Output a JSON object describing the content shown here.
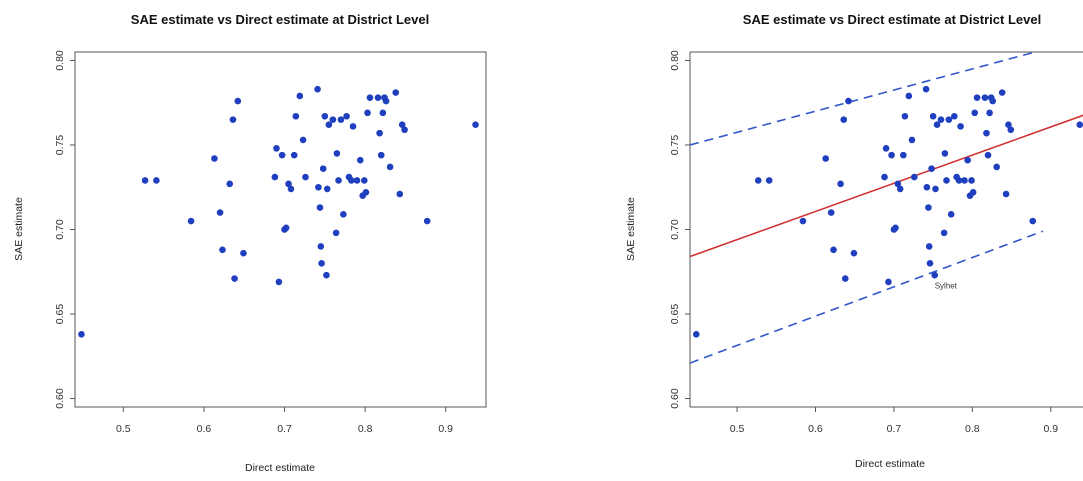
{
  "chart_data": [
    {
      "type": "scatter",
      "title": "SAE estimate vs Direct estimate at District Level",
      "xlabel": "Direct estimate",
      "ylabel": "SAE estimate",
      "xlim": [
        0.44,
        0.95
      ],
      "ylim": [
        0.595,
        0.805
      ],
      "xticks": [
        "0.5",
        "0.6",
        "0.7",
        "0.8",
        "0.9"
      ],
      "yticks": [
        "0.60",
        "0.65",
        "0.70",
        "0.75",
        "0.80"
      ],
      "grid": false,
      "point_color": "#1f3fbf",
      "points": [
        [
          0.448,
          0.638
        ],
        [
          0.527,
          0.729
        ],
        [
          0.541,
          0.729
        ],
        [
          0.584,
          0.705
        ],
        [
          0.613,
          0.742
        ],
        [
          0.62,
          0.71
        ],
        [
          0.623,
          0.688
        ],
        [
          0.632,
          0.727
        ],
        [
          0.636,
          0.765
        ],
        [
          0.638,
          0.671
        ],
        [
          0.642,
          0.776
        ],
        [
          0.649,
          0.686
        ],
        [
          0.688,
          0.731
        ],
        [
          0.69,
          0.748
        ],
        [
          0.693,
          0.669
        ],
        [
          0.697,
          0.744
        ],
        [
          0.7,
          0.7
        ],
        [
          0.702,
          0.701
        ],
        [
          0.705,
          0.727
        ],
        [
          0.708,
          0.724
        ],
        [
          0.712,
          0.744
        ],
        [
          0.714,
          0.767
        ],
        [
          0.719,
          0.779
        ],
        [
          0.723,
          0.753
        ],
        [
          0.726,
          0.731
        ],
        [
          0.741,
          0.783
        ],
        [
          0.742,
          0.725
        ],
        [
          0.744,
          0.713
        ],
        [
          0.745,
          0.69
        ],
        [
          0.746,
          0.68
        ],
        [
          0.748,
          0.736
        ],
        [
          0.75,
          0.767
        ],
        [
          0.752,
          0.673
        ],
        [
          0.753,
          0.724
        ],
        [
          0.755,
          0.762
        ],
        [
          0.76,
          0.765
        ],
        [
          0.764,
          0.698
        ],
        [
          0.765,
          0.745
        ],
        [
          0.767,
          0.729
        ],
        [
          0.77,
          0.765
        ],
        [
          0.773,
          0.709
        ],
        [
          0.777,
          0.767
        ],
        [
          0.78,
          0.731
        ],
        [
          0.783,
          0.729
        ],
        [
          0.785,
          0.761
        ],
        [
          0.79,
          0.729
        ],
        [
          0.794,
          0.741
        ],
        [
          0.797,
          0.72
        ],
        [
          0.799,
          0.729
        ],
        [
          0.801,
          0.722
        ],
        [
          0.803,
          0.769
        ],
        [
          0.806,
          0.778
        ],
        [
          0.816,
          0.778
        ],
        [
          0.818,
          0.757
        ],
        [
          0.82,
          0.744
        ],
        [
          0.822,
          0.769
        ],
        [
          0.824,
          0.778
        ],
        [
          0.826,
          0.776
        ],
        [
          0.831,
          0.737
        ],
        [
          0.838,
          0.781
        ],
        [
          0.843,
          0.721
        ],
        [
          0.846,
          0.762
        ],
        [
          0.849,
          0.759
        ],
        [
          0.877,
          0.705
        ],
        [
          0.937,
          0.762
        ]
      ]
    },
    {
      "type": "scatter",
      "title": "SAE estimate vs Direct estimate at District Level",
      "xlabel": "Direct estimate",
      "ylabel": "SAE estimate",
      "xlim": [
        0.44,
        0.95
      ],
      "ylim": [
        0.595,
        0.805
      ],
      "xticks": [
        "0.5",
        "0.6",
        "0.7",
        "0.8",
        "0.9"
      ],
      "yticks": [
        "0.60",
        "0.65",
        "0.70",
        "0.75",
        "0.80"
      ],
      "grid": false,
      "point_color": "#1f3fbf",
      "fit_line": {
        "color": "#d03030",
        "from": [
          0.44,
          0.684
        ],
        "to": [
          0.95,
          0.769
        ]
      },
      "bounds": {
        "color": "#3355cc",
        "upper": {
          "from": [
            0.44,
            0.75
          ],
          "to": [
            0.88,
            0.805
          ]
        },
        "lower": {
          "from": [
            0.44,
            0.621
          ],
          "to": [
            0.89,
            0.699
          ]
        }
      },
      "annotation": {
        "text": "Sylhet",
        "x": 0.752,
        "y": 0.665
      },
      "points": [
        [
          0.448,
          0.638
        ],
        [
          0.527,
          0.729
        ],
        [
          0.541,
          0.729
        ],
        [
          0.584,
          0.705
        ],
        [
          0.613,
          0.742
        ],
        [
          0.62,
          0.71
        ],
        [
          0.623,
          0.688
        ],
        [
          0.632,
          0.727
        ],
        [
          0.636,
          0.765
        ],
        [
          0.638,
          0.671
        ],
        [
          0.642,
          0.776
        ],
        [
          0.649,
          0.686
        ],
        [
          0.688,
          0.731
        ],
        [
          0.69,
          0.748
        ],
        [
          0.693,
          0.669
        ],
        [
          0.697,
          0.744
        ],
        [
          0.7,
          0.7
        ],
        [
          0.702,
          0.701
        ],
        [
          0.705,
          0.727
        ],
        [
          0.708,
          0.724
        ],
        [
          0.712,
          0.744
        ],
        [
          0.714,
          0.767
        ],
        [
          0.719,
          0.779
        ],
        [
          0.723,
          0.753
        ],
        [
          0.726,
          0.731
        ],
        [
          0.741,
          0.783
        ],
        [
          0.742,
          0.725
        ],
        [
          0.744,
          0.713
        ],
        [
          0.745,
          0.69
        ],
        [
          0.746,
          0.68
        ],
        [
          0.748,
          0.736
        ],
        [
          0.75,
          0.767
        ],
        [
          0.752,
          0.673
        ],
        [
          0.753,
          0.724
        ],
        [
          0.755,
          0.762
        ],
        [
          0.76,
          0.765
        ],
        [
          0.764,
          0.698
        ],
        [
          0.765,
          0.745
        ],
        [
          0.767,
          0.729
        ],
        [
          0.77,
          0.765
        ],
        [
          0.773,
          0.709
        ],
        [
          0.777,
          0.767
        ],
        [
          0.78,
          0.731
        ],
        [
          0.783,
          0.729
        ],
        [
          0.785,
          0.761
        ],
        [
          0.79,
          0.729
        ],
        [
          0.794,
          0.741
        ],
        [
          0.797,
          0.72
        ],
        [
          0.799,
          0.729
        ],
        [
          0.801,
          0.722
        ],
        [
          0.803,
          0.769
        ],
        [
          0.806,
          0.778
        ],
        [
          0.816,
          0.778
        ],
        [
          0.818,
          0.757
        ],
        [
          0.82,
          0.744
        ],
        [
          0.822,
          0.769
        ],
        [
          0.824,
          0.778
        ],
        [
          0.826,
          0.776
        ],
        [
          0.831,
          0.737
        ],
        [
          0.838,
          0.781
        ],
        [
          0.843,
          0.721
        ],
        [
          0.846,
          0.762
        ],
        [
          0.849,
          0.759
        ],
        [
          0.877,
          0.705
        ],
        [
          0.937,
          0.762
        ]
      ]
    }
  ]
}
